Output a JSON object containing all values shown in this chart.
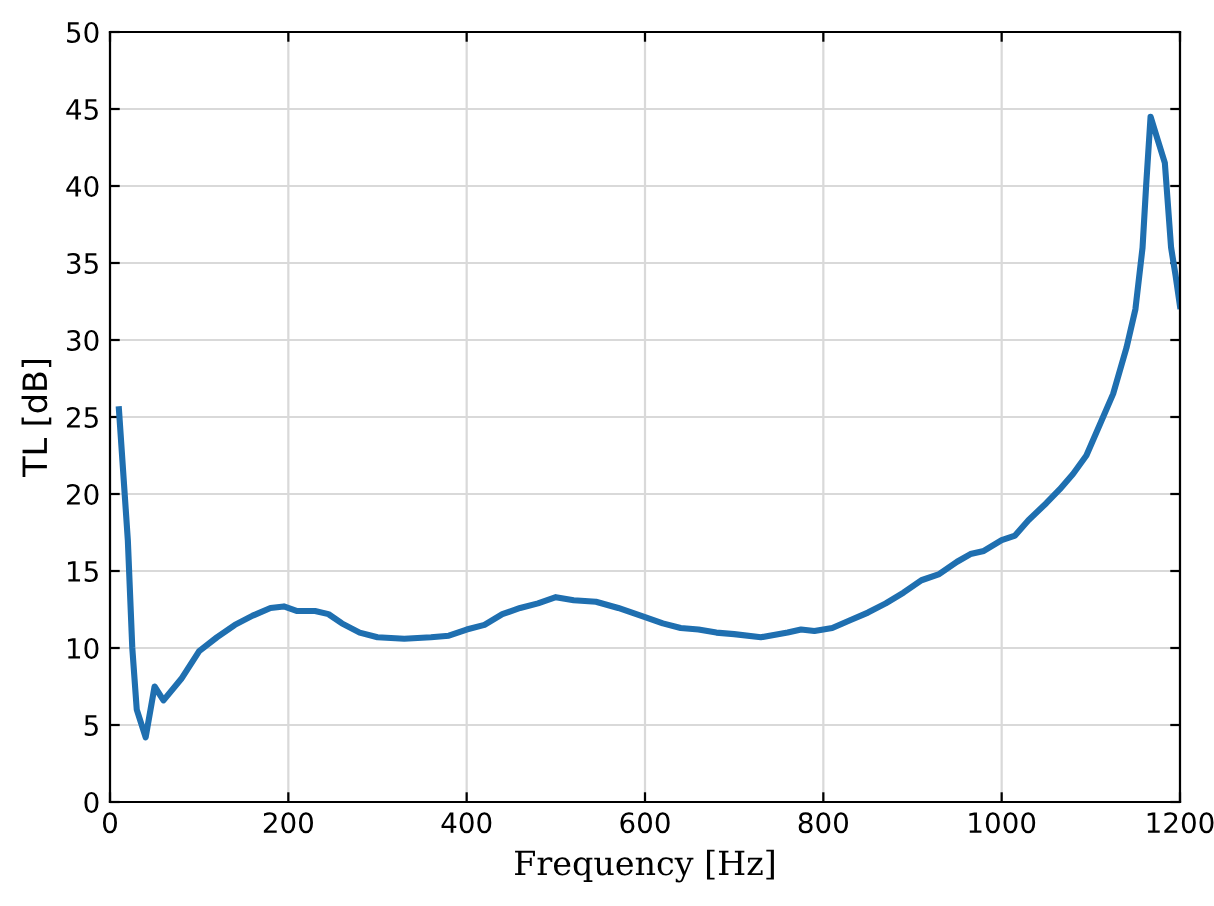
{
  "chart_data": {
    "type": "line",
    "xlabel": "Frequency [Hz]",
    "ylabel": "TL [dB]",
    "xlim": [
      0,
      1200
    ],
    "ylim": [
      0,
      50
    ],
    "xticks": [
      0,
      200,
      400,
      600,
      800,
      1000,
      1200
    ],
    "yticks": [
      0,
      5,
      10,
      15,
      20,
      25,
      30,
      35,
      40,
      45,
      50
    ],
    "grid": true,
    "marker": "none",
    "line_style": "solid",
    "series": [
      {
        "color": "#1f6fb0",
        "x": [
          10,
          20,
          25,
          30,
          40,
          50,
          60,
          80,
          100,
          120,
          140,
          160,
          180,
          195,
          210,
          230,
          245,
          260,
          280,
          300,
          330,
          360,
          380,
          400,
          420,
          440,
          460,
          480,
          500,
          520,
          545,
          570,
          600,
          620,
          640,
          660,
          680,
          700,
          730,
          760,
          775,
          790,
          810,
          830,
          850,
          870,
          890,
          910,
          930,
          950,
          965,
          980,
          1000,
          1015,
          1030,
          1050,
          1065,
          1080,
          1095,
          1110,
          1125,
          1140,
          1150,
          1158,
          1162,
          1167,
          1175,
          1183,
          1190,
          1195,
          1200
        ],
        "values": [
          25.5,
          17,
          10,
          6,
          4.2,
          7.5,
          6.6,
          8,
          9.8,
          10.7,
          11.5,
          12.1,
          12.6,
          12.7,
          12.4,
          12.4,
          12.2,
          11.6,
          11.0,
          10.7,
          10.6,
          10.7,
          10.8,
          11.2,
          11.5,
          12.2,
          12.6,
          12.9,
          13.3,
          13.1,
          13.0,
          12.6,
          12.0,
          11.6,
          11.3,
          11.2,
          11.0,
          10.9,
          10.7,
          11.0,
          11.2,
          11.1,
          11.3,
          11.8,
          12.3,
          12.9,
          13.6,
          14.4,
          14.8,
          15.6,
          16.1,
          16.3,
          17.0,
          17.3,
          18.3,
          19.4,
          20.3,
          21.3,
          22.5,
          24.5,
          26.5,
          29.5,
          32,
          36,
          40,
          44.5,
          43,
          41.5,
          36,
          34.2,
          32.2
        ]
      }
    ]
  }
}
